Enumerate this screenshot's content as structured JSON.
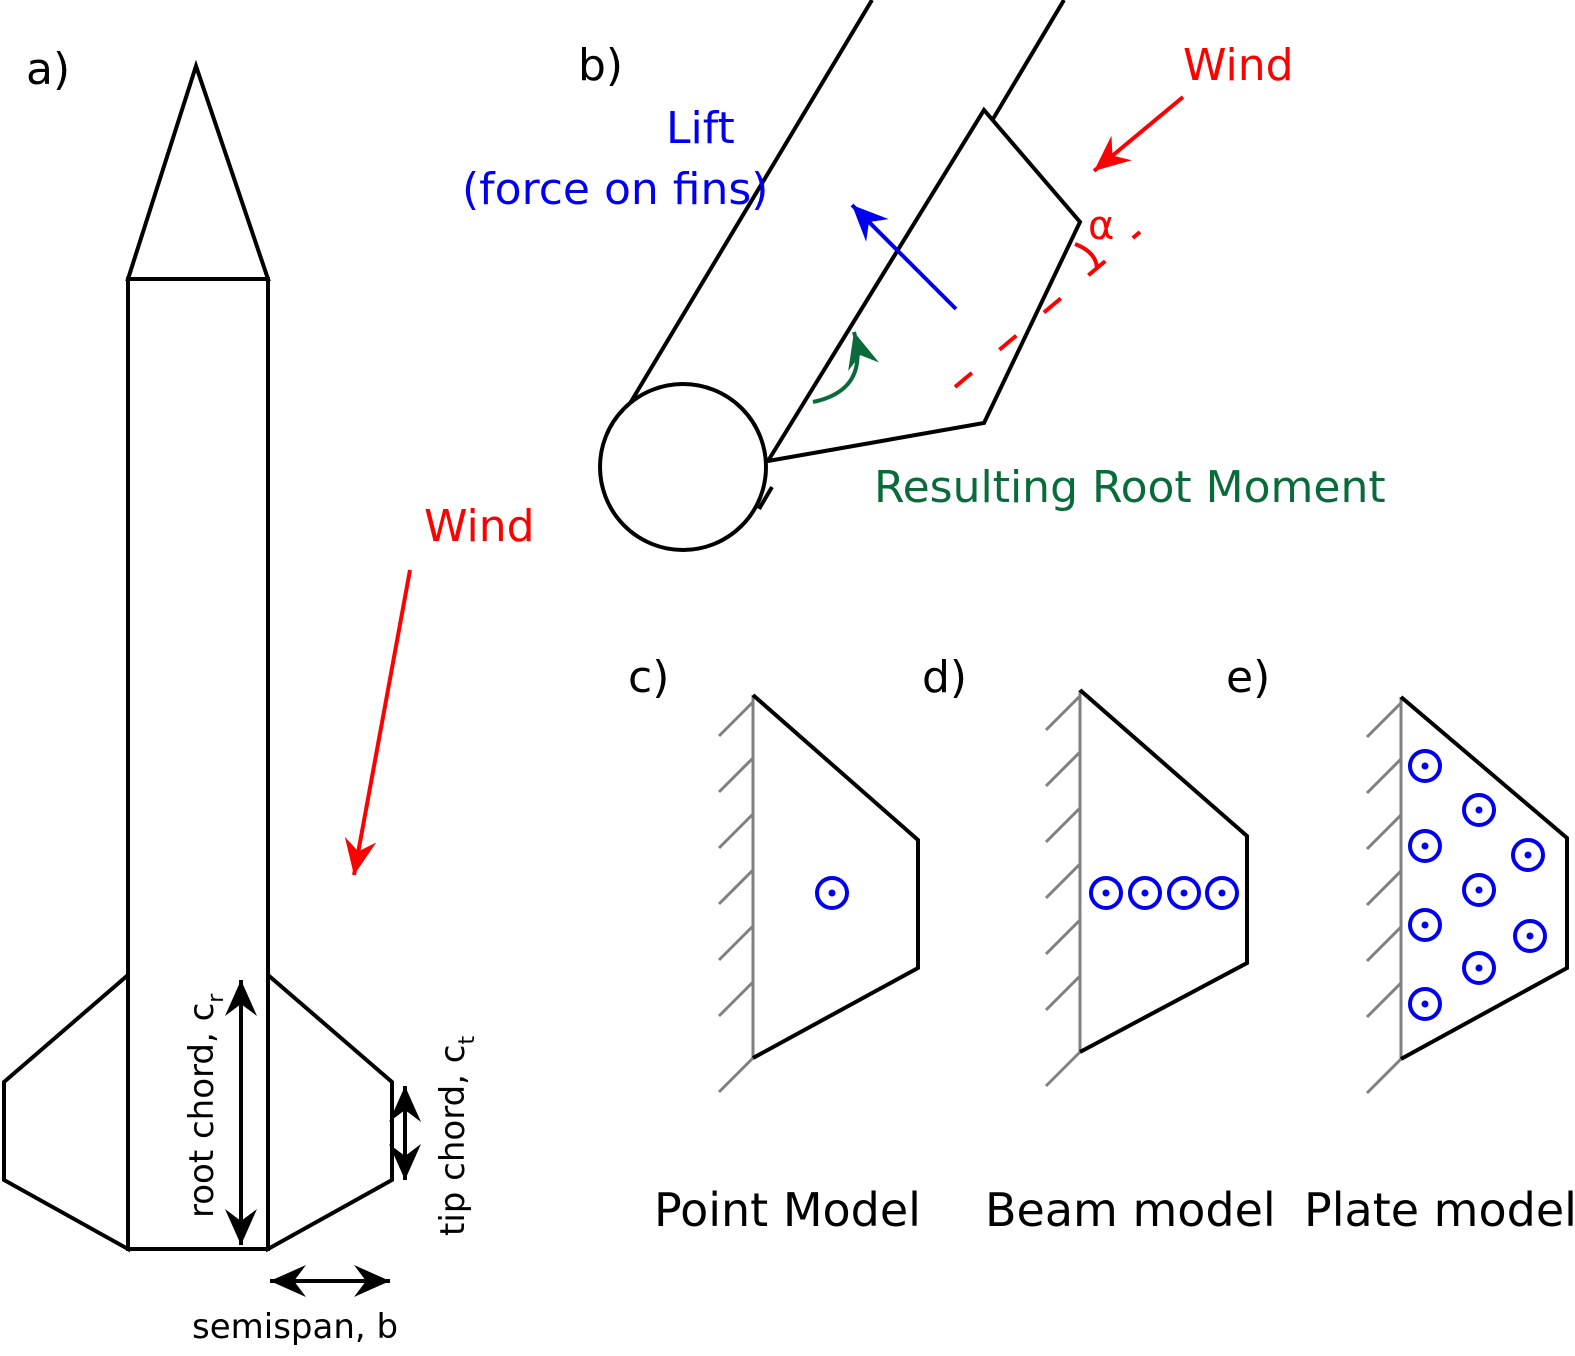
{
  "panels": {
    "a": {
      "label": "a)",
      "wind": "Wind",
      "root_chord": "root chord, c",
      "root_chord_sub": "r",
      "tip_chord": "tip chord, c",
      "tip_chord_sub": "t",
      "semispan": "semispan, b"
    },
    "b": {
      "label": "b)",
      "lift_line1": "Lift",
      "lift_line2": "(force on fins)",
      "wind": "Wind",
      "alpha": "α",
      "moment": "Resulting Root Moment"
    },
    "c": {
      "label": "c)",
      "caption": "Point Model"
    },
    "d": {
      "label": "d)",
      "caption": "Beam model"
    },
    "e": {
      "label": "e)",
      "caption": "Plate model"
    }
  },
  "colors": {
    "outline": "#000000",
    "wind": "#ff0000",
    "lift": "#0000ee",
    "moment": "#0a6b3a",
    "wall": "#808080",
    "load": "#0000ee"
  }
}
